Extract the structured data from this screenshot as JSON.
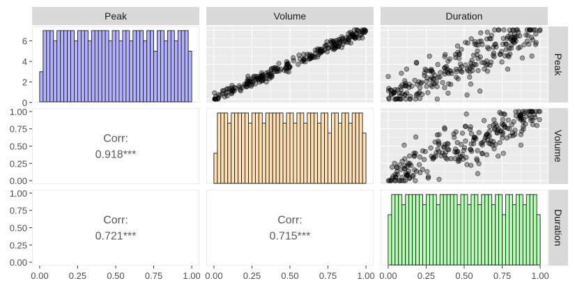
{
  "chart_data": {
    "type": "pairs-matrix",
    "variables": [
      "Peak",
      "Volume",
      "Duration"
    ],
    "colors": {
      "hist_peak": "#b3b3ff",
      "hist_volume": "#ffe0b3",
      "hist_duration": "#b3ffb3",
      "panel_bg": "#ebebeb",
      "strip_bg": "#d9d9d9",
      "grid": "#ffffff",
      "axis_text": "#4d4d4d",
      "corr_text": "#595959"
    },
    "axes": {
      "col_x_ticks": [
        "0.00",
        "0.25",
        "0.50",
        "0.75",
        "1.00"
      ],
      "row1_y_ticks": [
        "0",
        "2",
        "4",
        "6"
      ],
      "row1_ylim": [
        0,
        7.4
      ],
      "row23_y_ticks": [
        "0.00",
        "0.25",
        "0.50",
        "0.75",
        "1.00"
      ],
      "unit_lim": [
        -0.05,
        1.05
      ]
    },
    "histograms": [
      {
        "variable": "Peak",
        "bins": 20,
        "counts": [
          3,
          7,
          7,
          7,
          6,
          7,
          7,
          7,
          7,
          7,
          6,
          7,
          7,
          7,
          6,
          7,
          7,
          7,
          7,
          7,
          6,
          7,
          7,
          6,
          7,
          7,
          6,
          7,
          7,
          7,
          6,
          7,
          7,
          5,
          7,
          7,
          6,
          7,
          7,
          6,
          7,
          7,
          7,
          5
        ]
      },
      {
        "variable": "Volume",
        "counts": [
          3,
          7,
          7,
          7,
          6,
          7,
          7,
          7,
          7,
          7,
          6,
          7,
          7,
          7,
          6,
          7,
          7,
          7,
          7,
          7,
          6,
          7,
          7,
          6,
          7,
          7,
          6,
          7,
          7,
          7,
          6,
          7,
          7,
          5,
          7,
          7,
          6,
          7,
          7,
          6,
          7,
          7,
          7,
          5
        ]
      },
      {
        "variable": "Duration",
        "counts": [
          5,
          7,
          7,
          7,
          6,
          7,
          7,
          7,
          7,
          7,
          6,
          7,
          7,
          7,
          6,
          7,
          7,
          7,
          7,
          7,
          6,
          7,
          7,
          6,
          7,
          7,
          6,
          7,
          7,
          7,
          6,
          7,
          7,
          5,
          7,
          7,
          6,
          7,
          7,
          6,
          7,
          7,
          7,
          5
        ]
      }
    ],
    "correlations": [
      {
        "row": "Volume",
        "col": "Peak",
        "label": "Corr:",
        "value": "0.918***"
      },
      {
        "row": "Duration",
        "col": "Peak",
        "label": "Corr:",
        "value": "0.721***"
      },
      {
        "row": "Duration",
        "col": "Volume",
        "label": "Corr:",
        "value": "0.715***"
      }
    ],
    "scatter_panels": [
      {
        "row": "Peak",
        "col": "Volume",
        "x_var": "Volume",
        "y_var": "Peak",
        "n_points": 250,
        "relationship": "tight-positive"
      },
      {
        "row": "Peak",
        "col": "Duration",
        "x_var": "Duration",
        "y_var": "Peak",
        "n_points": 250,
        "relationship": "moderate-positive"
      },
      {
        "row": "Volume",
        "col": "Duration",
        "x_var": "Duration",
        "y_var": "Volume",
        "n_points": 250,
        "relationship": "moderate-positive"
      }
    ],
    "grid": true,
    "legend": "none"
  }
}
